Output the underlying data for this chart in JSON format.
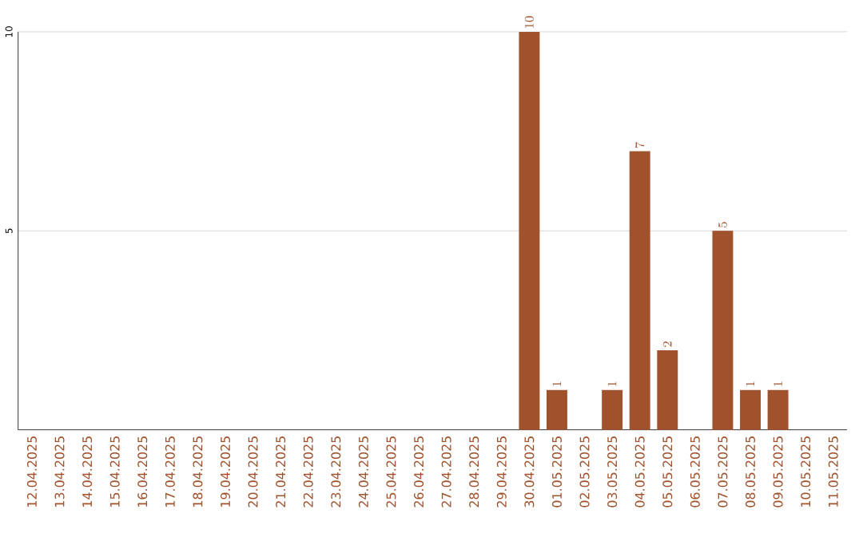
{
  "chart_data": {
    "type": "bar",
    "categories": [
      "12.04.2025",
      "13.04.2025",
      "14.04.2025",
      "15.04.2025",
      "16.04.2025",
      "17.04.2025",
      "18.04.2025",
      "19.04.2025",
      "20.04.2025",
      "21.04.2025",
      "22.04.2025",
      "23.04.2025",
      "24.04.2025",
      "25.04.2025",
      "26.04.2025",
      "27.04.2025",
      "28.04.2025",
      "29.04.2025",
      "30.04.2025",
      "01.05.2025",
      "02.05.2025",
      "03.05.2025",
      "04.05.2025",
      "05.05.2025",
      "06.05.2025",
      "07.05.2025",
      "08.05.2025",
      "09.05.2025",
      "10.05.2025",
      "11.05.2025"
    ],
    "values": [
      null,
      null,
      null,
      null,
      null,
      null,
      null,
      null,
      null,
      null,
      null,
      null,
      null,
      null,
      null,
      null,
      null,
      null,
      10,
      1,
      null,
      1,
      7,
      2,
      null,
      5,
      1,
      1,
      null,
      null
    ],
    "color": "#a0522d",
    "ylim": [
      0,
      10
    ],
    "yticks": [
      5,
      10
    ],
    "grid": "y",
    "data_labels": true
  }
}
